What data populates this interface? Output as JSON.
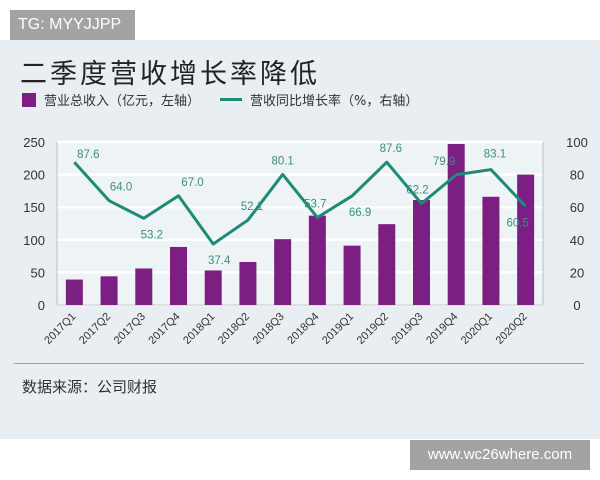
{
  "watermark_top": "TG: MYYJJPP",
  "watermark_bottom": "www.wc26where.com",
  "colors": {
    "bar": "#7b1f82",
    "line": "#1e8a78",
    "background": "#e8eef1"
  },
  "footer": {
    "source": "数据来源：公司财报"
  },
  "chart_data": {
    "type": "bar",
    "title": "二季度营收增长率降低",
    "categories": [
      "2017Q1",
      "2017Q2",
      "2017Q3",
      "2017Q4",
      "2018Q1",
      "2018Q2",
      "2018Q3",
      "2018Q4",
      "2019Q1",
      "2019Q2",
      "2019Q3",
      "2019Q4",
      "2020Q1",
      "2020Q2"
    ],
    "series": [
      {
        "name": "营业总收入（亿元，左轴）",
        "type": "bar",
        "axis": "left",
        "values": [
          39,
          44,
          56,
          89,
          53,
          66,
          101,
          137,
          91,
          124,
          161,
          247,
          166,
          200
        ]
      },
      {
        "name": "营收同比增长率（%，右轴）",
        "type": "line",
        "axis": "right",
        "values": [
          87.6,
          64.0,
          53.2,
          67.0,
          37.4,
          52.1,
          80.1,
          53.7,
          66.9,
          87.6,
          62.2,
          79.9,
          83.1,
          60.5
        ],
        "labels": [
          "87.6",
          "64.0",
          "53.2",
          "67.0",
          "37.4",
          "52.1",
          "80.1",
          "53.7",
          "66.9",
          "87.6",
          "62.2",
          "79.9",
          "83.1",
          "60.5"
        ]
      }
    ],
    "legend": [
      "营业总收入（亿元，左轴）",
      "营收同比增长率（%，右轴）"
    ],
    "xlabel": "",
    "ylabel": "",
    "y2label": "",
    "ylim": [
      0,
      250
    ],
    "y2lim": [
      0,
      100
    ],
    "yticks": [
      "0",
      "50",
      "100",
      "150",
      "200",
      "250"
    ],
    "y2ticks": [
      "0",
      "20",
      "40",
      "60",
      "80",
      "100"
    ],
    "grid": true,
    "legend_position": "top"
  }
}
